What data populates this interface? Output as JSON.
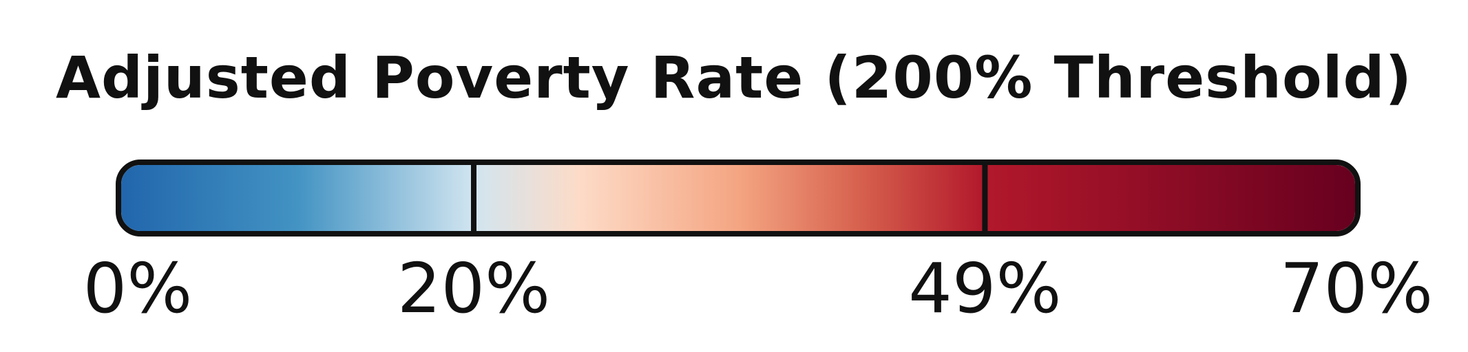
{
  "legend": {
    "title": "Adjusted Poverty Rate (200% Threshold)",
    "min": 0,
    "max": 70,
    "ticks": [
      {
        "value": 0,
        "label": "0%"
      },
      {
        "value": 20,
        "label": "20%"
      },
      {
        "value": 49,
        "label": "49%"
      },
      {
        "value": 70,
        "label": "70%"
      }
    ],
    "breaks": [
      20,
      49
    ],
    "color_stops": [
      {
        "value": 0,
        "color": "#2166ac"
      },
      {
        "value": 10,
        "color": "#4393c3"
      },
      {
        "value": 20,
        "color": "#d1e5f0"
      },
      {
        "value": 26,
        "color": "#fddbc7"
      },
      {
        "value": 35,
        "color": "#f4a582"
      },
      {
        "value": 42,
        "color": "#d6604d"
      },
      {
        "value": 49,
        "color": "#b2182b"
      },
      {
        "value": 70,
        "color": "#67001f"
      }
    ],
    "outline_color": "#111111"
  }
}
